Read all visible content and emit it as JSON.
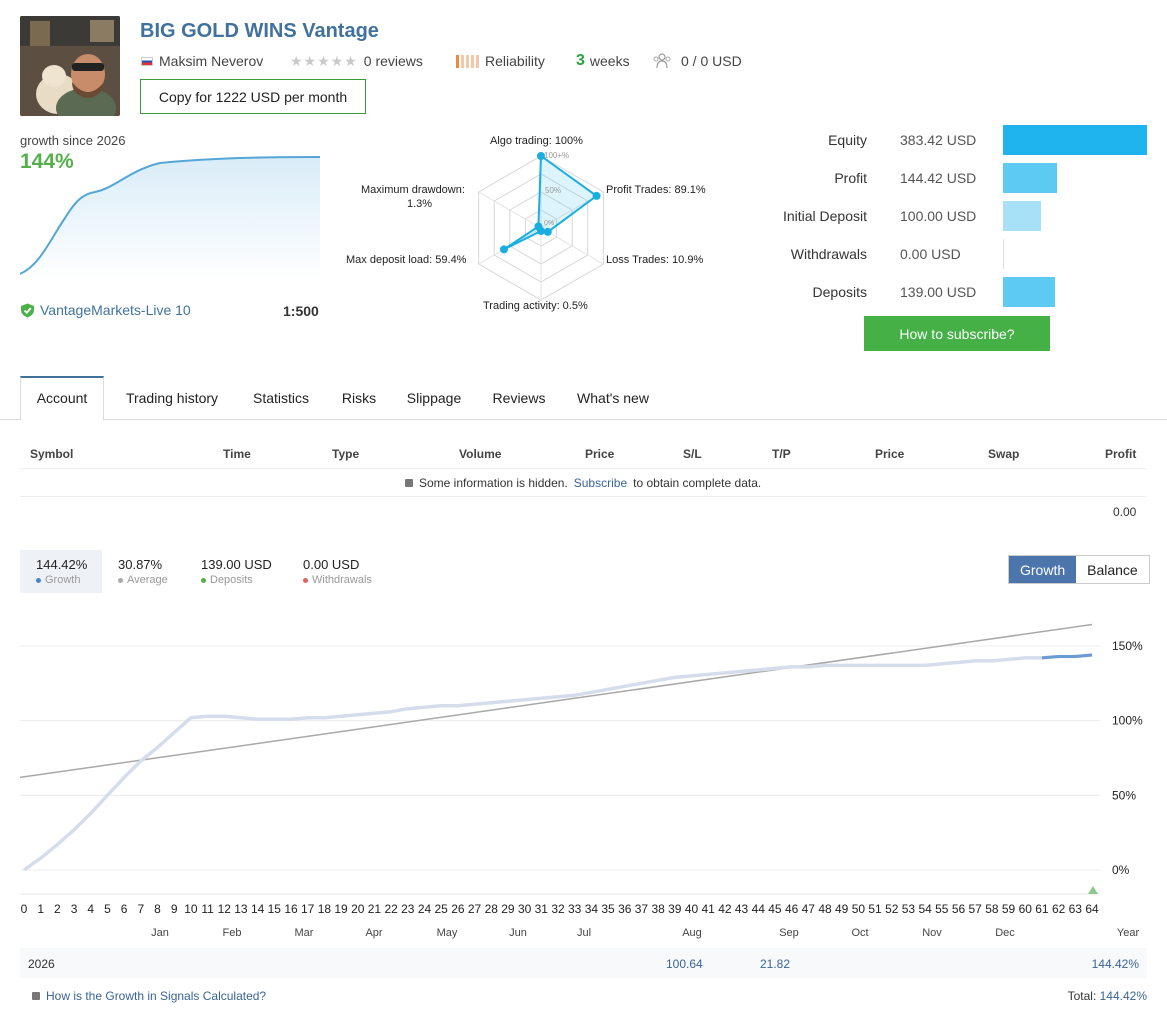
{
  "header": {
    "title": "BIG GOLD WINS Vantage",
    "author": "Maksim Neverov",
    "reviews": "0 reviews",
    "reliability": "Reliability",
    "weeks_num": "3",
    "weeks_label": "weeks",
    "subscribers": "0 / 0 USD",
    "copy_button": "Copy for 1222 USD per month"
  },
  "growth_mini": {
    "label": "growth since 2026",
    "value": "144%",
    "server": "VantageMarkets-Live 10",
    "leverage": "1:500"
  },
  "radar": {
    "algo": "Algo trading: 100%",
    "profit": "Profit Trades: 89.1%",
    "loss": "Loss Trades: 10.9%",
    "activity": "Trading activity: 0.5%",
    "load": "Max deposit load: 59.4%",
    "drawdown_1": "Maximum drawdown:",
    "drawdown_2": "1.3%",
    "ring_100": "100+%",
    "ring_50": "50%",
    "ring_0": "0%",
    "values": {
      "algo": 1.0,
      "profit": 0.891,
      "loss": 0.109,
      "activity": 0.005,
      "load": 0.594,
      "drawdown": 0.013
    }
  },
  "balances": [
    {
      "label": "Equity",
      "value": "383.42 USD",
      "amount": 383.42,
      "color": "#1fb4ee"
    },
    {
      "label": "Profit",
      "value": "144.42 USD",
      "amount": 144.42,
      "color": "#5ccaf2"
    },
    {
      "label": "Initial Deposit",
      "value": "100.00 USD",
      "amount": 100.0,
      "color": "#a6e1f7"
    },
    {
      "label": "Withdrawals",
      "value": "0.00 USD",
      "amount": 0.0,
      "color": "#cde9f6"
    },
    {
      "label": "Deposits",
      "value": "139.00 USD",
      "amount": 139.0,
      "color": "#5ccaf2"
    }
  ],
  "subscribe_button": "How to subscribe?",
  "tabs": [
    "Account",
    "Trading history",
    "Statistics",
    "Risks",
    "Slippage",
    "Reviews",
    "What's new"
  ],
  "table": {
    "headers": [
      "Symbol",
      "Time",
      "Type",
      "Volume",
      "Price",
      "S/L",
      "T/P",
      "Price",
      "Swap",
      "Profit"
    ],
    "hidden_note_pre": "Some information is hidden.",
    "hidden_note_link": "Subscribe",
    "hidden_note_post": "to obtain complete data.",
    "total": "0.00"
  },
  "summary": [
    {
      "value": "144.42%",
      "caption": "Growth",
      "color": "#4a86c8"
    },
    {
      "value": "30.87%",
      "caption": "Average",
      "color": "#aaaaaa"
    },
    {
      "value": "139.00 USD",
      "caption": "Deposits",
      "color": "#55b04b"
    },
    {
      "value": "0.00 USD",
      "caption": "Withdrawals",
      "color": "#e06060"
    }
  ],
  "toggle": {
    "growth": "Growth",
    "balance": "Balance"
  },
  "chart_data": {
    "type": "line",
    "x": [
      0,
      1,
      2,
      3,
      4,
      5,
      6,
      7,
      8,
      9,
      10,
      11,
      12,
      13,
      14,
      15,
      16,
      17,
      18,
      19,
      20,
      21,
      22,
      23,
      24,
      25,
      26,
      27,
      28,
      29,
      30,
      31,
      32,
      33,
      34,
      35,
      36,
      37,
      38,
      39,
      40,
      41,
      42,
      43,
      44,
      45,
      46,
      47,
      48,
      49,
      50,
      51,
      52,
      53,
      54,
      55,
      56,
      57,
      58,
      59,
      60,
      61,
      62,
      63,
      64
    ],
    "series": [
      {
        "values": [
          0,
          8,
          17,
          27,
          38,
          50,
          62,
          73,
          82,
          92,
          102,
          103,
          103,
          102,
          101,
          101,
          101,
          102,
          102,
          103,
          104,
          105,
          106,
          108,
          109,
          110,
          110,
          111,
          112,
          113,
          114,
          115,
          116,
          117,
          119,
          121,
          123,
          125,
          127,
          129,
          130,
          131,
          132,
          133,
          134,
          135,
          136,
          136,
          137,
          137,
          137,
          137,
          137,
          137,
          137,
          138,
          139,
          140,
          140,
          141,
          142,
          142,
          143,
          143,
          144
        ]
      },
      {
        "values": [
          62,
          63.6,
          65.2,
          66.8,
          68.4,
          70,
          71.6,
          73.2,
          74.8,
          76.4,
          78,
          79.6,
          81.2,
          82.8,
          84.4,
          86,
          87.6,
          89.2,
          90.8,
          92.4,
          94,
          95.6,
          97.2,
          98.8,
          100.4,
          102,
          103.6,
          105.2,
          106.8,
          108.4,
          110,
          111.6,
          113.2,
          114.8,
          116.4,
          118,
          119.6,
          121.2,
          122.8,
          124.4,
          126,
          127.6,
          129.2,
          130.8,
          132.4,
          134,
          135.6,
          137.2,
          138.8,
          140.4,
          142,
          143.6,
          145.2,
          146.8,
          148.4,
          150,
          151.6,
          153.2,
          154.8,
          156.4,
          158,
          159.6,
          161.2,
          162.8,
          164.4
        ]
      }
    ],
    "y_ticks": [
      "0%",
      "50%",
      "100%",
      "150%"
    ],
    "ylim": [
      0,
      150
    ],
    "months": [
      "Jan",
      "Feb",
      "Mar",
      "Apr",
      "May",
      "Jun",
      "Jul",
      "Aug",
      "Sep",
      "Oct",
      "Nov",
      "Dec",
      "Year"
    ],
    "grid": true
  },
  "year_row": {
    "year": "2026",
    "aug": "100.64",
    "sep": "21.82",
    "year_total": "144.42%"
  },
  "footer": {
    "link": "How is the Growth in Signals Calculated?",
    "total_label": "Total:",
    "total_value": "144.42%"
  }
}
